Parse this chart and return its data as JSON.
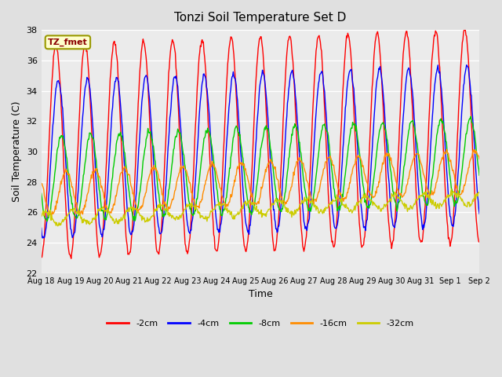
{
  "title": "Tonzi Soil Temperature Set D",
  "xlabel": "Time",
  "ylabel": "Soil Temperature (C)",
  "ylim": [
    22,
    38
  ],
  "yticks": [
    22,
    24,
    26,
    28,
    30,
    32,
    34,
    36,
    38
  ],
  "n_days": 15,
  "n_points_per_day": 48,
  "xtick_labels": [
    "Aug 18",
    "Aug 19",
    "Aug 20",
    "Aug 21",
    "Aug 22",
    "Aug 23",
    "Aug 24",
    "Aug 25",
    "Aug 26",
    "Aug 27",
    "Aug 28",
    "Aug 29",
    "Aug 30",
    "Aug 31",
    "Sep 1",
    "Sep 2"
  ],
  "series_params": {
    "-2cm": {
      "color": "#FF0000",
      "base": 30.0,
      "amp": 7.0,
      "phase": 0.0,
      "trend": 0.07
    },
    "-4cm": {
      "color": "#0000FF",
      "base": 29.5,
      "amp": 5.2,
      "phase": 0.5,
      "trend": 0.06
    },
    "-8cm": {
      "color": "#00CC00",
      "base": 28.2,
      "amp": 2.8,
      "phase": 1.2,
      "trend": 0.08
    },
    "-16cm": {
      "color": "#FF8C00",
      "base": 27.2,
      "amp": 1.4,
      "phase": 2.2,
      "trend": 0.1
    },
    "-32cm": {
      "color": "#CCCC00",
      "base": 25.6,
      "amp": 0.45,
      "phase": 3.8,
      "trend": 0.09
    }
  },
  "legend_label": "TZ_fmet",
  "background_color": "#E0E0E0",
  "plot_bg_color": "#EBEBEB"
}
